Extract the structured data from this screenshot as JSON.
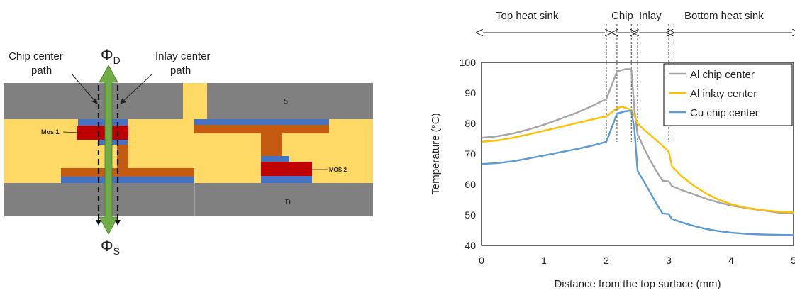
{
  "cross_section": {
    "chip_center_label_line1": "Chip center",
    "chip_center_label_line2": "path",
    "inlay_center_label_line1": "Inlay center",
    "inlay_center_label_line2": "path",
    "phi_top": "Φ",
    "phi_top_sub": "D",
    "phi_bottom": "Φ",
    "phi_bottom_sub": "S",
    "source_label": "S",
    "drain_label": "D",
    "mos1_label": "Mos 1",
    "mos2_label": "MOS 2",
    "colors": {
      "heat_sink": "#808080",
      "fill": "#FFD966",
      "copper": "#C55A11",
      "die": "#C00000",
      "pad": "#4472C4",
      "arrow": "#70AD47"
    }
  },
  "regions": {
    "top_heat_sink": "Top heat sink",
    "chip": "Chip",
    "inlay": "Inlay",
    "bottom_heat_sink": "Bottom heat sink"
  },
  "chart_data": {
    "type": "line",
    "xlabel": "Distance from the top surface (mm)",
    "ylabel": "Temperature (°C)",
    "xlim": [
      0,
      5
    ],
    "ylim": [
      40,
      100
    ],
    "xticks": [
      0,
      1,
      2,
      3,
      4,
      5
    ],
    "yticks": [
      40,
      50,
      60,
      70,
      80,
      90,
      100
    ],
    "grid": false,
    "legend": "top-right",
    "boundaries": [
      2.0,
      2.17,
      2.4,
      2.5,
      3.0,
      3.05
    ],
    "series": [
      {
        "name": "Al chip center",
        "color": "#A5A5A5",
        "x": [
          0,
          0.25,
          0.5,
          0.75,
          1.0,
          1.25,
          1.5,
          1.75,
          2.0,
          2.17,
          2.3,
          2.4,
          2.45,
          2.5,
          2.6,
          2.7,
          2.8,
          2.9,
          3.0,
          3.05,
          3.2,
          3.4,
          3.6,
          3.8,
          4.0,
          4.25,
          4.5,
          4.75,
          5.0
        ],
        "y": [
          75.3,
          75.8,
          76.7,
          78.0,
          79.6,
          81.4,
          83.3,
          85.5,
          88.0,
          97.0,
          97.8,
          97.8,
          84.5,
          76.5,
          72.0,
          68.0,
          64.5,
          61.2,
          61.0,
          59.5,
          58.2,
          56.8,
          55.3,
          54.1,
          53.1,
          52.2,
          51.5,
          50.8,
          50.4
        ]
      },
      {
        "name": "Al inlay center",
        "color": "#FFC000",
        "x": [
          0,
          0.25,
          0.5,
          0.75,
          1.0,
          1.25,
          1.5,
          1.75,
          2.0,
          2.17,
          2.25,
          2.35,
          2.4,
          2.45,
          2.5,
          2.6,
          2.7,
          2.8,
          2.9,
          3.0,
          3.05,
          3.2,
          3.4,
          3.6,
          3.8,
          4.0,
          4.25,
          4.5,
          4.75,
          5.0
        ],
        "y": [
          74.0,
          74.4,
          75.3,
          76.4,
          77.6,
          78.8,
          80.0,
          81.2,
          82.3,
          85.0,
          85.5,
          84.8,
          84.5,
          82.5,
          80.0,
          78.0,
          76.3,
          74.5,
          72.7,
          70.8,
          66.0,
          62.8,
          59.6,
          57.0,
          55.0,
          53.5,
          52.3,
          51.6,
          51.1,
          50.9
        ]
      },
      {
        "name": "Cu chip center",
        "color": "#5B9BD5",
        "x": [
          0,
          0.25,
          0.5,
          0.75,
          1.0,
          1.25,
          1.5,
          1.75,
          2.0,
          2.17,
          2.3,
          2.4,
          2.45,
          2.5,
          2.6,
          2.7,
          2.8,
          2.9,
          3.0,
          3.05,
          3.2,
          3.4,
          3.6,
          3.8,
          4.0,
          4.25,
          4.5,
          4.75,
          5.0
        ],
        "y": [
          66.7,
          67.0,
          67.6,
          68.5,
          69.5,
          70.5,
          71.5,
          72.6,
          74.0,
          83.2,
          84.0,
          84.2,
          78.0,
          64.5,
          61.0,
          57.5,
          53.8,
          50.5,
          50.3,
          48.7,
          47.6,
          46.4,
          45.4,
          44.7,
          44.2,
          43.8,
          43.6,
          43.5,
          43.4
        ]
      }
    ]
  }
}
